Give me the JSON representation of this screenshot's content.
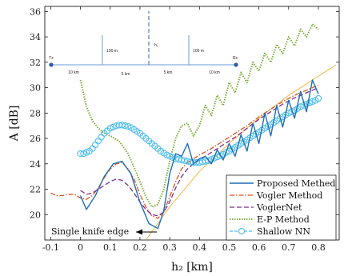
{
  "chart_data": {
    "type": "line",
    "xlabel": "h₂ [km]",
    "ylabel": "A [dB]",
    "xlim": [
      -0.12,
      0.87
    ],
    "ylim": [
      18,
      36.4
    ],
    "xticks": [
      -0.1,
      0,
      0.1,
      0.2,
      0.3,
      0.4,
      0.5,
      0.6,
      0.7,
      0.8
    ],
    "yticks": [
      20,
      22,
      24,
      26,
      28,
      30,
      32,
      34,
      36
    ],
    "xtick_labels": [
      "-0.1",
      "0",
      "0.1",
      "0.2",
      "0.3",
      "0.4",
      "0.5",
      "0.6",
      "0.7",
      "0.8"
    ],
    "ytick_labels": [
      "20",
      "22",
      "24",
      "26",
      "28",
      "30",
      "32",
      "34",
      "36"
    ],
    "legend_position": "bottom-right",
    "grid": false,
    "series": [
      {
        "name": "Proposed Methed",
        "color": "#1f6fb4",
        "style": "solid",
        "x": [
          0.0,
          0.02,
          0.05,
          0.08,
          0.11,
          0.14,
          0.17,
          0.2,
          0.23,
          0.26,
          0.28,
          0.3,
          0.32,
          0.34,
          0.36,
          0.38,
          0.4,
          0.42,
          0.44,
          0.46,
          0.48,
          0.5,
          0.52,
          0.54,
          0.56,
          0.58,
          0.6,
          0.62,
          0.64,
          0.66,
          0.68,
          0.7,
          0.72,
          0.74,
          0.76,
          0.78,
          0.8
        ],
        "y": [
          21.5,
          20.4,
          21.5,
          23.0,
          24.0,
          24.2,
          23.2,
          21.0,
          19.3,
          18.9,
          20.3,
          23.2,
          24.8,
          24.6,
          25.6,
          24.0,
          24.4,
          24.6,
          24.0,
          25.1,
          24.3,
          25.6,
          24.6,
          26.3,
          25.0,
          27.2,
          25.6,
          28.0,
          26.2,
          28.6,
          26.9,
          29.0,
          27.6,
          29.7,
          28.1,
          30.6,
          29.5
        ]
      },
      {
        "name": "Vogler Method",
        "color": "#d9541e",
        "style": "dashdot",
        "x": [
          -0.1,
          -0.08,
          -0.06,
          -0.04,
          -0.02,
          0.0,
          0.02,
          0.04,
          0.06,
          0.08,
          0.1,
          0.12,
          0.14,
          0.16,
          0.18,
          0.2,
          0.22,
          0.24,
          0.26,
          0.28,
          0.3,
          0.32,
          0.34,
          0.36,
          0.38,
          0.4,
          0.44,
          0.48,
          0.52,
          0.56,
          0.6,
          0.64,
          0.68,
          0.72,
          0.76,
          0.8
        ],
        "y": [
          21.7,
          21.5,
          21.5,
          21.6,
          21.6,
          21.3,
          21.2,
          21.5,
          22.1,
          22.9,
          23.6,
          24.0,
          24.1,
          23.6,
          22.8,
          21.6,
          20.6,
          19.9,
          19.7,
          20.2,
          21.4,
          22.6,
          23.6,
          24.1,
          24.4,
          24.7,
          25.2,
          25.8,
          26.4,
          27.0,
          27.7,
          28.3,
          28.9,
          29.4,
          29.8,
          30.2
        ]
      },
      {
        "name": "VoglerNet",
        "color": "#7d2e8e",
        "style": "dashed",
        "x": [
          0.0,
          0.02,
          0.04,
          0.06,
          0.08,
          0.1,
          0.12,
          0.14,
          0.16,
          0.18,
          0.2,
          0.22,
          0.24,
          0.26,
          0.28,
          0.3,
          0.32,
          0.34,
          0.36,
          0.38,
          0.4,
          0.44,
          0.48,
          0.52,
          0.56,
          0.6,
          0.64,
          0.68,
          0.72,
          0.76,
          0.8
        ],
        "y": [
          21.9,
          21.6,
          21.7,
          22.0,
          22.3,
          22.6,
          22.8,
          22.7,
          22.3,
          21.7,
          21.0,
          20.4,
          20.0,
          19.9,
          20.2,
          21.0,
          22.1,
          23.0,
          23.6,
          24.0,
          24.3,
          24.9,
          25.5,
          26.1,
          26.8,
          27.5,
          28.1,
          28.7,
          29.2,
          29.6,
          30.0
        ]
      },
      {
        "name": "E-P Method",
        "color": "#77ac30",
        "style": "dotted",
        "x": [
          0.0,
          0.02,
          0.04,
          0.06,
          0.08,
          0.1,
          0.13,
          0.16,
          0.19,
          0.22,
          0.24,
          0.26,
          0.28,
          0.3,
          0.32,
          0.34,
          0.36,
          0.38,
          0.4,
          0.42,
          0.44,
          0.46,
          0.48,
          0.5,
          0.52,
          0.54,
          0.56,
          0.58,
          0.6,
          0.62,
          0.64,
          0.66,
          0.68,
          0.7,
          0.72,
          0.74,
          0.76,
          0.78,
          0.8
        ],
        "y": [
          30.6,
          28.5,
          27.4,
          26.8,
          26.4,
          26.2,
          25.8,
          24.8,
          23.2,
          21.4,
          20.6,
          20.8,
          22.0,
          24.2,
          26.0,
          27.0,
          27.2,
          26.2,
          27.0,
          28.6,
          27.8,
          29.4,
          28.6,
          30.4,
          29.6,
          31.2,
          30.4,
          32.0,
          31.3,
          32.7,
          32.0,
          33.4,
          32.7,
          34.0,
          33.3,
          34.6,
          34.0,
          35.0,
          34.6
        ]
      },
      {
        "name": "Shallow NN",
        "color": "#4dbeee",
        "style": "circles",
        "x": [
          0.0,
          0.01,
          0.02,
          0.03,
          0.04,
          0.05,
          0.06,
          0.07,
          0.08,
          0.09,
          0.1,
          0.11,
          0.12,
          0.13,
          0.14,
          0.15,
          0.16,
          0.17,
          0.18,
          0.19,
          0.2,
          0.21,
          0.22,
          0.23,
          0.24,
          0.25,
          0.26,
          0.27,
          0.28,
          0.29,
          0.3,
          0.31,
          0.32,
          0.33,
          0.34,
          0.35,
          0.36,
          0.37,
          0.38,
          0.39,
          0.4,
          0.41,
          0.42,
          0.43,
          0.44,
          0.45,
          0.46,
          0.47,
          0.48,
          0.49,
          0.5,
          0.51,
          0.52,
          0.53,
          0.54,
          0.55,
          0.56,
          0.57,
          0.58,
          0.59,
          0.6,
          0.61,
          0.62,
          0.63,
          0.64,
          0.65,
          0.66,
          0.67,
          0.68,
          0.69,
          0.7,
          0.71,
          0.72,
          0.73,
          0.74,
          0.75,
          0.76,
          0.77,
          0.78,
          0.79,
          0.8
        ],
        "y": [
          24.8,
          24.8,
          24.9,
          25.0,
          25.2,
          25.5,
          25.8,
          26.1,
          26.4,
          26.6,
          26.8,
          26.9,
          27.0,
          27.05,
          27.05,
          27.0,
          26.95,
          26.85,
          26.7,
          26.55,
          26.4,
          26.2,
          26.0,
          25.8,
          25.6,
          25.4,
          25.2,
          25.0,
          24.85,
          24.7,
          24.6,
          24.5,
          24.4,
          24.35,
          24.3,
          24.25,
          24.2,
          24.15,
          24.1,
          24.1,
          24.1,
          24.15,
          24.2,
          24.25,
          24.35,
          24.45,
          24.55,
          24.65,
          24.75,
          24.9,
          25.0,
          25.15,
          25.3,
          25.45,
          25.6,
          25.75,
          25.9,
          26.05,
          26.2,
          26.35,
          26.5,
          26.65,
          26.8,
          26.95,
          27.1,
          27.25,
          27.4,
          27.55,
          27.7,
          27.85,
          28.0,
          28.1,
          28.2,
          28.35,
          28.5,
          28.6,
          28.7,
          28.8,
          28.9,
          29.0,
          29.15
        ]
      },
      {
        "name": "",
        "color": "#f2b134",
        "style": "solid-thin",
        "x": [
          0.22,
          0.3,
          0.4,
          0.5,
          0.6,
          0.7,
          0.8,
          0.86
        ],
        "y": [
          18.0,
          20.6,
          23.4,
          25.6,
          27.6,
          29.4,
          30.9,
          31.8
        ]
      }
    ],
    "annotation": {
      "text": "Single knife edge",
      "points_to": [
        0.22,
        18.7
      ]
    },
    "inset": {
      "tx_label": "Tx",
      "rx_label": "Rx",
      "h2_label": "h₂",
      "height_label_1": "100 m",
      "height_label_2": "100 m",
      "dist_labels": [
        "10 km",
        "5 km",
        "5 km",
        "10 km"
      ]
    }
  }
}
